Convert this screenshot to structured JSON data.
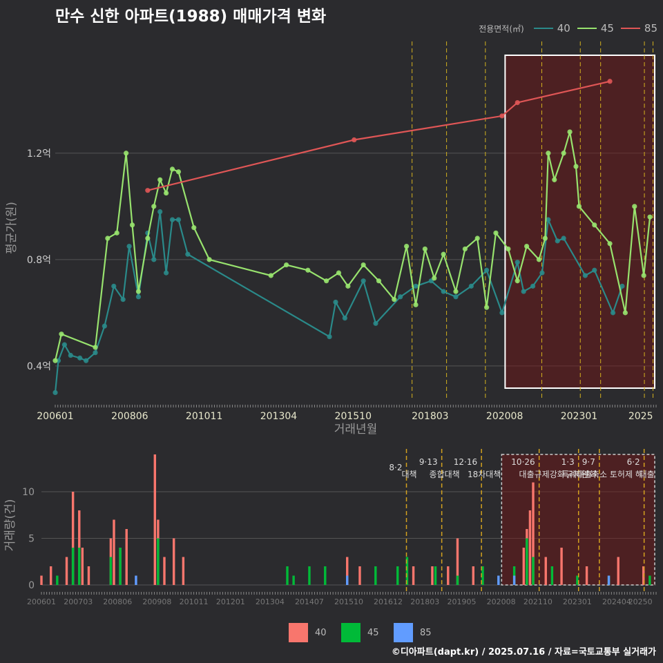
{
  "title": "만수 신한 아파트(1988) 매매가격 변화",
  "legend_area": {
    "title": "전용면적(㎡)",
    "items": [
      {
        "label": "40",
        "color": "#2a8a8a"
      },
      {
        "label": "45",
        "color": "#98e36e"
      },
      {
        "label": "85",
        "color": "#e05656"
      }
    ]
  },
  "legend_volume": {
    "items": [
      {
        "label": "40",
        "color": "#f8766d"
      },
      {
        "label": "45",
        "color": "#00ba38"
      },
      {
        "label": "85",
        "color": "#619cff"
      }
    ]
  },
  "caption": "©디아파트(dapt.kr) / 2025.07.16 / 자료=국토교통부 실거래가",
  "chart_data": [
    {
      "type": "line",
      "title": "평균가(원) by 거래년월",
      "xlabel": "거래년월",
      "ylabel": "평균가(원)",
      "x_range": [
        2006.0,
        2025.5
      ],
      "ylim": [
        0.27,
        1.62
      ],
      "y_ticks": [
        0.4,
        0.8,
        1.2
      ],
      "y_tick_labels": [
        "0.4억",
        "0.8억",
        "1.2억"
      ],
      "x_ticks": [
        2006.0,
        2008.4167,
        2010.8333,
        2013.25,
        2015.6667,
        2018.1667,
        2020.5833,
        2023.0,
        2025.0
      ],
      "x_tick_labels": [
        "200601",
        "200806",
        "201011",
        "201304",
        "201510",
        "201803",
        "202008",
        "202301",
        "2025"
      ],
      "policy_lines": [
        2017.58,
        2018.7,
        2019.96,
        2021.79,
        2023.04,
        2023.7,
        2025.12,
        2025.4
      ],
      "highlight_range": [
        2020.6,
        2025.5
      ],
      "series": [
        {
          "name": "40",
          "x": [
            2006.0,
            2006.1,
            2006.3,
            2006.5,
            2006.8,
            2007.0,
            2007.3,
            2007.6,
            2007.9,
            2008.2,
            2008.4,
            2008.7,
            2009.0,
            2009.2,
            2009.4,
            2009.6,
            2009.8,
            2010.0,
            2010.3,
            2014.9,
            2015.1,
            2015.4,
            2016.0,
            2016.4,
            2017.2,
            2017.7,
            2018.2,
            2018.6,
            2019.0,
            2019.5,
            2020.0,
            2020.5,
            2021.0,
            2021.2,
            2021.5,
            2021.8,
            2022.0,
            2022.3,
            2022.5,
            2023.2,
            2023.5,
            2024.1,
            2024.4
          ],
          "values": [
            0.3,
            0.42,
            0.48,
            0.44,
            0.43,
            0.42,
            0.45,
            0.55,
            0.7,
            0.65,
            0.85,
            0.66,
            0.9,
            0.8,
            0.98,
            0.75,
            0.95,
            0.95,
            0.82,
            0.51,
            0.64,
            0.58,
            0.72,
            0.56,
            0.66,
            0.7,
            0.72,
            0.68,
            0.66,
            0.7,
            0.76,
            0.6,
            0.79,
            0.68,
            0.7,
            0.75,
            0.95,
            0.87,
            0.88,
            0.74,
            0.76,
            0.6,
            0.7
          ]
        },
        {
          "name": "45",
          "x": [
            2006.0,
            2006.2,
            2007.3,
            2007.7,
            2008.0,
            2008.3,
            2008.5,
            2008.7,
            2009.0,
            2009.2,
            2009.4,
            2009.6,
            2009.8,
            2010.0,
            2010.5,
            2011.0,
            2013.0,
            2013.5,
            2014.2,
            2014.8,
            2015.2,
            2015.5,
            2016.0,
            2016.5,
            2017.0,
            2017.4,
            2017.7,
            2018.0,
            2018.3,
            2018.6,
            2019.0,
            2019.3,
            2019.7,
            2020.0,
            2020.3,
            2020.7,
            2021.0,
            2021.3,
            2021.7,
            2021.9,
            2022.0,
            2022.2,
            2022.5,
            2022.7,
            2022.9,
            2023.0,
            2023.5,
            2024.0,
            2024.5,
            2024.8,
            2025.1,
            2025.3
          ],
          "values": [
            0.42,
            0.52,
            0.47,
            0.88,
            0.9,
            1.2,
            0.93,
            0.68,
            0.88,
            1.0,
            1.1,
            1.05,
            1.14,
            1.13,
            0.92,
            0.8,
            0.74,
            0.78,
            0.76,
            0.72,
            0.75,
            0.7,
            0.78,
            0.72,
            0.65,
            0.85,
            0.63,
            0.84,
            0.73,
            0.82,
            0.68,
            0.84,
            0.88,
            0.62,
            0.9,
            0.84,
            0.72,
            0.85,
            0.8,
            0.88,
            1.2,
            1.1,
            1.2,
            1.28,
            1.15,
            1.0,
            0.93,
            0.86,
            0.6,
            1.0,
            0.74,
            0.96
          ]
        },
        {
          "name": "85",
          "x": [
            2009.0,
            2015.7,
            2020.5,
            2021.0,
            2024.0
          ],
          "values": [
            1.06,
            1.25,
            1.34,
            1.39,
            1.47
          ]
        }
      ]
    },
    {
      "type": "bar",
      "title": "거래량(건)",
      "xlabel": "",
      "ylabel": "거래량(건)",
      "x_range": [
        2006.0,
        2025.5
      ],
      "ylim": [
        0,
        14
      ],
      "y_ticks": [
        0,
        5,
        10
      ],
      "x_ticks": [
        2006.0,
        2007.1667,
        2008.4167,
        2009.6667,
        2010.8333,
        2012.0,
        2013.25,
        2014.5,
        2015.75,
        2017.0,
        2018.1667,
        2019.3333,
        2020.5833,
        2021.75,
        2023.0,
        2024.25,
        2025.0
      ],
      "x_tick_labels": [
        "200601",
        "200703",
        "200806",
        "200908",
        "201011",
        "201201",
        "201304",
        "201407",
        "201510",
        "201612",
        "201803",
        "201905",
        "202008",
        "202110",
        "202301",
        "202404",
        "20250"
      ],
      "policy_lines": [
        {
          "x": 2017.58,
          "label": "8·2 대책"
        },
        {
          "x": 2018.7,
          "label": "9·13 종합대책"
        },
        {
          "x": 2019.96,
          "label": "12·16 18차대책"
        },
        {
          "x": 2021.79,
          "label": "10·26 대출규제강화"
        },
        {
          "x": 2023.04,
          "label": "1·3 규제완화"
        },
        {
          "x": 2023.7,
          "label": "9·7 특례대출축소 토허제 해"
        },
        {
          "x": 2025.12,
          "label": "6·2 대출"
        }
      ],
      "highlight_range": [
        2020.6,
        2025.5
      ],
      "series": [
        {
          "name": "40",
          "months": [
            2006.0,
            2006.3,
            2006.8,
            2007.0,
            2007.2,
            2007.3,
            2007.5,
            2008.2,
            2008.3,
            2008.5,
            2008.7,
            2009.6,
            2009.7,
            2009.9,
            2010.2,
            2010.5,
            2015.7,
            2016.1,
            2017.8,
            2018.4,
            2018.9,
            2019.2,
            2019.7,
            2021.3,
            2021.4,
            2021.5,
            2021.6,
            2022.0,
            2022.5,
            2023.3,
            2024.3,
            2025.1
          ],
          "values": [
            1,
            2,
            3,
            10,
            8,
            4,
            2,
            5,
            7,
            4,
            6,
            14,
            7,
            3,
            5,
            3,
            3,
            2,
            2,
            2,
            2,
            5,
            2,
            4,
            6,
            8,
            11,
            3,
            4,
            2,
            3,
            2
          ]
        },
        {
          "name": "45",
          "months": [
            2006.5,
            2007.0,
            2007.2,
            2008.2,
            2008.5,
            2009.7,
            2013.8,
            2014.0,
            2014.5,
            2015.0,
            2016.6,
            2017.3,
            2017.6,
            2018.5,
            2019.2,
            2020.0,
            2021.0,
            2021.4,
            2021.6,
            2022.2,
            2023.0,
            2024.0,
            2025.3
          ],
          "values": [
            1,
            4,
            4,
            3,
            4,
            5,
            2,
            1,
            2,
            2,
            2,
            2,
            3,
            2,
            1,
            2,
            2,
            5,
            3,
            2,
            1,
            1,
            1
          ]
        },
        {
          "name": "85",
          "months": [
            2009.0,
            2015.7,
            2020.5,
            2021.0,
            2024.0
          ],
          "values": [
            1,
            1,
            1,
            1,
            1
          ]
        }
      ]
    }
  ]
}
